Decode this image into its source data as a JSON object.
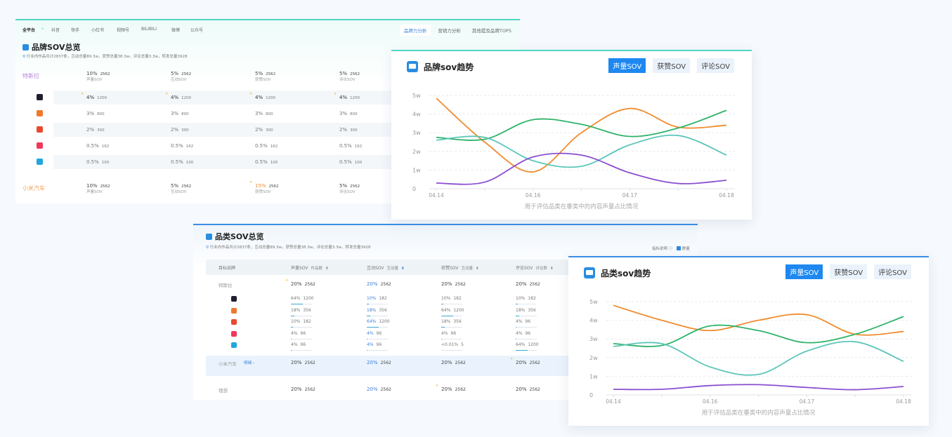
{
  "brand_panel": {
    "nav": [
      "全平台",
      "抖音",
      "快手",
      "小红书",
      "视频号",
      "BILIBILI",
      "微博",
      "公众号"
    ],
    "tabs": [
      "品牌力分析",
      "营销力分析",
      "其他提及品牌TOP5"
    ],
    "title": "品牌SOV总览",
    "desc": "行业内作品共计2837条，互动总量89.3w，获赞总量38.3w，评论总量3.3w，转发总量3928",
    "metrics": [
      "声量SOV",
      "互动SOV",
      "获赞SOV",
      "评论SOV"
    ],
    "brands": [
      {
        "name": "特斯拉",
        "color": "#b58ad8",
        "values": [
          [
            "10%",
            "2562"
          ],
          [
            "5%",
            "2562"
          ],
          [
            "5%",
            "2562"
          ],
          [
            "5%",
            "2562"
          ]
        ]
      },
      {
        "name": "小米汽车",
        "color": "#f0a35e",
        "values": [
          [
            "10%",
            "2562"
          ],
          [
            "5%",
            "2562"
          ],
          [
            "15%",
            "2562"
          ],
          [
            "5%",
            "2562"
          ]
        ]
      }
    ],
    "platform_rows": [
      {
        "icon": "douyin-icon",
        "values": [
          [
            "4%",
            "1200"
          ],
          [
            "4%",
            "1200"
          ],
          [
            "4%",
            "1200"
          ],
          [
            "4%",
            "1200"
          ]
        ]
      },
      {
        "icon": "kuaishou-icon",
        "values": [
          [
            "3%",
            "800"
          ],
          [
            "3%",
            "800"
          ],
          [
            "3%",
            "800"
          ],
          [
            "3%",
            "800"
          ]
        ]
      },
      {
        "icon": "xiaohongshu-icon",
        "values": [
          [
            "2%",
            "300"
          ],
          [
            "2%",
            "300"
          ],
          [
            "2%",
            "300"
          ],
          [
            "2%",
            "300"
          ]
        ]
      },
      {
        "icon": "weibo-icon",
        "values": [
          [
            "0.5%",
            "162"
          ],
          [
            "0.5%",
            "162"
          ],
          [
            "0.5%",
            "162"
          ],
          [
            "0.5%",
            "162"
          ]
        ]
      },
      {
        "icon": "bilibili-icon",
        "values": [
          [
            "0.5%",
            "100"
          ],
          [
            "0.5%",
            "100"
          ],
          [
            "0.5%",
            "100"
          ],
          [
            "0.5%",
            "100"
          ]
        ]
      }
    ]
  },
  "category_panel": {
    "title": "品类SOV总览",
    "desc": "行业内作品共计2837条，互动总量89.3w，获赞总量38.3w，评论总量3.3w，转发总量3928",
    "legend_info": "指标说明 ⓘ",
    "legend_check": "数量",
    "headers": [
      "目标品牌",
      "声量SOV",
      "互动SOV",
      "获赞SOV",
      "评论SOV"
    ],
    "sub_headers": [
      "作品数",
      "互动量",
      "互动量",
      "评论数"
    ],
    "detail_link": "明细 ›",
    "brands": [
      {
        "name": "特斯拉",
        "values": [
          [
            "20%",
            "2562"
          ],
          [
            "20%",
            "2562"
          ],
          [
            "20%",
            "2562"
          ],
          [
            "20%",
            "2562"
          ]
        ]
      },
      {
        "name": "小米汽车",
        "values": [
          [
            "20%",
            "2562"
          ],
          [
            "20%",
            "2562"
          ],
          [
            "20%",
            "2562"
          ],
          [
            "20%",
            "2562"
          ]
        ]
      },
      {
        "name": "理想",
        "values": [
          [
            "20%",
            "2562"
          ],
          [
            "20%",
            "2562"
          ],
          [
            "20%",
            "2562"
          ],
          [
            "20%",
            "2562"
          ]
        ]
      }
    ],
    "platform_rows": [
      {
        "icon": "douyin-icon",
        "values": [
          [
            "64%",
            "1200"
          ],
          [
            "10%",
            "182"
          ],
          [
            "10%",
            "182"
          ],
          [
            "10%",
            "182"
          ]
        ],
        "shares": [
          64,
          10,
          10,
          10
        ]
      },
      {
        "icon": "kuaishou-icon",
        "values": [
          [
            "18%",
            "356"
          ],
          [
            "18%",
            "356"
          ],
          [
            "64%",
            "1200"
          ],
          [
            "18%",
            "356"
          ]
        ],
        "shares": [
          18,
          18,
          64,
          18
        ]
      },
      {
        "icon": "xiaohongshu-icon",
        "values": [
          [
            "10%",
            "182"
          ],
          [
            "64%",
            "1200"
          ],
          [
            "18%",
            "356"
          ],
          [
            "4%",
            "96"
          ]
        ],
        "shares": [
          10,
          64,
          18,
          4
        ]
      },
      {
        "icon": "weibo-icon",
        "values": [
          [
            "4%",
            "96"
          ],
          [
            "4%",
            "96"
          ],
          [
            "4%",
            "96"
          ],
          [
            "4%",
            "96"
          ]
        ],
        "shares": [
          4,
          4,
          4,
          4
        ]
      },
      {
        "icon": "bilibili-icon",
        "values": [
          [
            "4%",
            "96"
          ],
          [
            "4%",
            "96"
          ],
          [
            "<0.01%",
            "5"
          ],
          [
            "64%",
            "1200"
          ]
        ],
        "shares": [
          4,
          4,
          0,
          64
        ]
      }
    ]
  },
  "platform_colors": {
    "douyin-icon": "#1f1f2e",
    "kuaishou-icon": "#f07a2a",
    "xiaohongshu-icon": "#e84a2e",
    "weibo-icon": "#f0385a",
    "bilibili-icon": "#22a6e0"
  },
  "chart_data": [
    {
      "type": "line",
      "title": "品牌sov趋势",
      "buttons": [
        "声量SOV",
        "获赞SOV",
        "评论SOV"
      ],
      "active": 0,
      "annotation": "用于评估品类在垂类中的内容声量占比情况",
      "x_labels": [
        "04.14",
        "",
        "04.16",
        "",
        "04.17",
        "",
        "04.18"
      ],
      "y_ticks": [
        "0",
        "1w",
        "2w",
        "3w",
        "4w",
        "5w"
      ],
      "ylim": [
        0,
        5
      ],
      "series": [
        {
          "name": "orange",
          "color": "#f08c2e",
          "values": [
            4.85,
            2.5,
            0.9,
            3.0,
            4.3,
            3.3,
            3.4
          ]
        },
        {
          "name": "green",
          "color": "#2fb36a",
          "values": [
            2.75,
            2.65,
            3.7,
            3.45,
            2.8,
            3.25,
            4.2
          ]
        },
        {
          "name": "teal",
          "color": "#5cc6b8",
          "values": [
            2.6,
            2.75,
            1.5,
            1.2,
            2.35,
            2.85,
            1.8
          ]
        },
        {
          "name": "purple",
          "color": "#8a4fd0",
          "values": [
            0.3,
            0.35,
            1.7,
            1.8,
            0.85,
            0.28,
            0.45
          ]
        }
      ]
    },
    {
      "type": "line",
      "title": "品类sov趋势",
      "buttons": [
        "声量SOV",
        "获赞SOV",
        "评论SOV"
      ],
      "active": 0,
      "annotation": "用于评估品类在垂类中的内容声量占比情况",
      "x_labels": [
        "04.14",
        "",
        "04.16",
        "",
        "04.17",
        "",
        "04.18"
      ],
      "y_ticks": [
        "0",
        "1w",
        "2w",
        "3w",
        "4w",
        "5w"
      ],
      "ylim": [
        0,
        5
      ],
      "series": [
        {
          "name": "orange",
          "color": "#f08c2e",
          "values": [
            4.8,
            4.0,
            3.45,
            4.0,
            4.3,
            3.25,
            3.4
          ]
        },
        {
          "name": "green",
          "color": "#2fb36a",
          "values": [
            2.75,
            2.65,
            3.7,
            3.45,
            2.8,
            3.25,
            4.2
          ]
        },
        {
          "name": "teal",
          "color": "#5cc6b8",
          "values": [
            2.6,
            2.75,
            1.5,
            1.1,
            2.35,
            2.85,
            1.8
          ]
        },
        {
          "name": "purple",
          "color": "#8a4fd0",
          "values": [
            0.3,
            0.3,
            0.5,
            0.55,
            0.4,
            0.28,
            0.45
          ]
        }
      ]
    }
  ]
}
